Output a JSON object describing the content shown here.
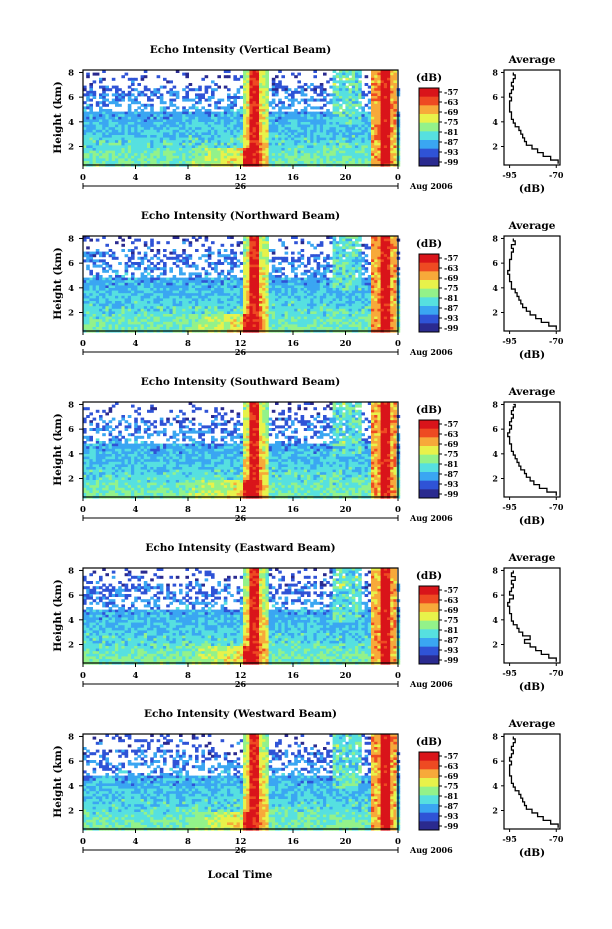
{
  "figure": {
    "xlabel": "Local Time",
    "date_label": "Aug 2006",
    "day_label": "26",
    "ylabel": "Height (km)",
    "colorbar_unit": "(dB)",
    "avg_title": "Average",
    "avg_xlabel": "(dB)"
  },
  "colormap": [
    "#2a2a8f",
    "#2f53d6",
    "#3aa6f2",
    "#56e0e0",
    "#93f28a",
    "#e8f24a",
    "#f7a93a",
    "#ee4a22",
    "#d9141a"
  ],
  "chart_data": [
    {
      "type": "heatmap",
      "title": "Echo Intensity (Vertical Beam)",
      "xlabel": "Local Time",
      "ylabel": "Height (km)",
      "x_ticks": [
        "0",
        "4",
        "8",
        "12",
        "16",
        "20",
        "0"
      ],
      "x_range_hours": [
        0,
        24
      ],
      "y_ticks": [
        "2",
        "4",
        "6",
        "8"
      ],
      "ylim": [
        0.5,
        8.2
      ],
      "colorbar": {
        "label": "(dB)",
        "ticks": [
          "-57",
          "-63",
          "-69",
          "-75",
          "-81",
          "-87",
          "-93",
          "-99"
        ],
        "range": [
          -99,
          -57
        ]
      },
      "average_profile": {
        "title": "Average",
        "xlabel": "(dB)",
        "x_ticks": [
          "-95",
          "-70"
        ],
        "xlim": [
          -98,
          -68
        ],
        "y_ticks": [
          "2",
          "4",
          "6",
          "8"
        ],
        "height_km": [
          0.6,
          0.9,
          1.2,
          1.5,
          1.8,
          2.1,
          2.4,
          2.7,
          3.0,
          3.3,
          3.6,
          3.9,
          4.2,
          4.5,
          4.8,
          5.1,
          5.4,
          5.7,
          6.0,
          6.3,
          6.6,
          6.9,
          7.2,
          7.5,
          7.8,
          8.0
        ],
        "echo_db": [
          -69,
          -73,
          -77,
          -80,
          -83,
          -86,
          -87,
          -88,
          -89,
          -90,
          -92,
          -93,
          -94,
          -94,
          -95,
          -95,
          -95,
          -94,
          -95,
          -94,
          -93,
          -94,
          -93,
          -92,
          -93,
          -93
        ]
      }
    },
    {
      "type": "heatmap",
      "title": "Echo Intensity (Northward Beam)",
      "xlabel": "Local Time",
      "ylabel": "Height (km)",
      "x_ticks": [
        "0",
        "4",
        "8",
        "12",
        "16",
        "20",
        "0"
      ],
      "x_range_hours": [
        0,
        24
      ],
      "y_ticks": [
        "2",
        "4",
        "6",
        "8"
      ],
      "ylim": [
        0.5,
        8.2
      ],
      "colorbar": {
        "label": "(dB)",
        "ticks": [
          "-57",
          "-63",
          "-69",
          "-75",
          "-81",
          "-87",
          "-93",
          "-99"
        ],
        "range": [
          -99,
          -57
        ]
      },
      "average_profile": {
        "title": "Average",
        "xlabel": "(dB)",
        "x_ticks": [
          "-95",
          "-70"
        ],
        "xlim": [
          -98,
          -68
        ],
        "y_ticks": [
          "2",
          "4",
          "6",
          "8"
        ],
        "height_km": [
          0.6,
          0.9,
          1.2,
          1.5,
          1.8,
          2.1,
          2.4,
          2.7,
          3.0,
          3.3,
          3.6,
          3.9,
          4.2,
          4.5,
          4.8,
          5.1,
          5.4,
          5.7,
          6.0,
          6.3,
          6.6,
          6.9,
          7.2,
          7.5,
          7.8,
          8.0
        ],
        "echo_db": [
          -70,
          -74,
          -78,
          -81,
          -84,
          -86,
          -88,
          -89,
          -90,
          -91,
          -92,
          -94,
          -94,
          -95,
          -95,
          -96,
          -95,
          -95,
          -95,
          -94,
          -94,
          -93,
          -94,
          -92,
          -93,
          -93
        ]
      }
    },
    {
      "type": "heatmap",
      "title": "Echo Intensity (Southward Beam)",
      "xlabel": "Local Time",
      "ylabel": "Height (km)",
      "x_ticks": [
        "0",
        "4",
        "8",
        "12",
        "16",
        "20",
        "0"
      ],
      "x_range_hours": [
        0,
        24
      ],
      "y_ticks": [
        "2",
        "4",
        "6",
        "8"
      ],
      "ylim": [
        0.5,
        8.2
      ],
      "colorbar": {
        "label": "(dB)",
        "ticks": [
          "-57",
          "-63",
          "-69",
          "-75",
          "-81",
          "-87",
          "-93",
          "-99"
        ],
        "range": [
          -99,
          -57
        ]
      },
      "average_profile": {
        "title": "Average",
        "xlabel": "(dB)",
        "x_ticks": [
          "-95",
          "-70"
        ],
        "xlim": [
          -98,
          -68
        ],
        "y_ticks": [
          "2",
          "4",
          "6",
          "8"
        ],
        "height_km": [
          0.6,
          0.9,
          1.2,
          1.5,
          1.8,
          2.1,
          2.4,
          2.7,
          3.0,
          3.3,
          3.6,
          3.9,
          4.2,
          4.5,
          4.8,
          5.1,
          5.4,
          5.7,
          6.0,
          6.3,
          6.6,
          6.9,
          7.2,
          7.5,
          7.8,
          8.0
        ],
        "echo_db": [
          -70,
          -75,
          -79,
          -82,
          -84,
          -86,
          -87,
          -89,
          -90,
          -91,
          -92,
          -93,
          -94,
          -94,
          -95,
          -95,
          -96,
          -95,
          -94,
          -95,
          -94,
          -93,
          -94,
          -93,
          -92,
          -93
        ]
      }
    },
    {
      "type": "heatmap",
      "title": "Echo Intensity (Eastward Beam)",
      "xlabel": "Local Time",
      "ylabel": "Height (km)",
      "x_ticks": [
        "0",
        "4",
        "8",
        "12",
        "16",
        "20",
        "0"
      ],
      "x_range_hours": [
        0,
        24
      ],
      "y_ticks": [
        "2",
        "4",
        "6",
        "8"
      ],
      "ylim": [
        0.5,
        8.2
      ],
      "colorbar": {
        "label": "(dB)",
        "ticks": [
          "-57",
          "-63",
          "-69",
          "-75",
          "-81",
          "-87",
          "-93",
          "-99"
        ],
        "range": [
          -99,
          -57
        ]
      },
      "average_profile": {
        "title": "Average",
        "xlabel": "(dB)",
        "x_ticks": [
          "-95",
          "-70"
        ],
        "xlim": [
          -98,
          -68
        ],
        "y_ticks": [
          "2",
          "4",
          "6",
          "8"
        ],
        "height_km": [
          0.6,
          0.9,
          1.2,
          1.5,
          1.8,
          2.1,
          2.4,
          2.7,
          3.0,
          3.3,
          3.6,
          3.9,
          4.2,
          4.5,
          4.8,
          5.1,
          5.4,
          5.7,
          6.0,
          6.3,
          6.6,
          6.9,
          7.2,
          7.5,
          7.8,
          8.0
        ],
        "echo_db": [
          -70,
          -74,
          -78,
          -81,
          -84,
          -87,
          -84,
          -88,
          -90,
          -91,
          -93,
          -94,
          -94,
          -95,
          -95,
          -96,
          -95,
          -93,
          -95,
          -94,
          -93,
          -94,
          -92,
          -94,
          -93,
          -93
        ]
      }
    },
    {
      "type": "heatmap",
      "title": "Echo Intensity (Westward Beam)",
      "xlabel": "Local Time",
      "ylabel": "Height (km)",
      "x_ticks": [
        "0",
        "4",
        "8",
        "12",
        "16",
        "20",
        "0"
      ],
      "x_range_hours": [
        0,
        24
      ],
      "y_ticks": [
        "2",
        "4",
        "6",
        "8"
      ],
      "ylim": [
        0.5,
        8.2
      ],
      "colorbar": {
        "label": "(dB)",
        "ticks": [
          "-57",
          "-63",
          "-69",
          "-75",
          "-81",
          "-87",
          "-93",
          "-99"
        ],
        "range": [
          -99,
          -57
        ]
      },
      "average_profile": {
        "title": "Average",
        "xlabel": "(dB)",
        "x_ticks": [
          "-95",
          "-70"
        ],
        "xlim": [
          -98,
          -68
        ],
        "y_ticks": [
          "2",
          "4",
          "6",
          "8"
        ],
        "height_km": [
          0.6,
          0.9,
          1.2,
          1.5,
          1.8,
          2.1,
          2.4,
          2.7,
          3.0,
          3.3,
          3.6,
          3.9,
          4.2,
          4.5,
          4.8,
          5.1,
          5.4,
          5.7,
          6.0,
          6.3,
          6.6,
          6.9,
          7.2,
          7.5,
          7.8,
          8.0
        ],
        "echo_db": [
          -69,
          -73,
          -77,
          -80,
          -83,
          -86,
          -87,
          -88,
          -89,
          -90,
          -92,
          -93,
          -94,
          -94,
          -95,
          -95,
          -95,
          -94,
          -95,
          -94,
          -93,
          -94,
          -93,
          -92,
          -93,
          -93
        ]
      }
    }
  ]
}
